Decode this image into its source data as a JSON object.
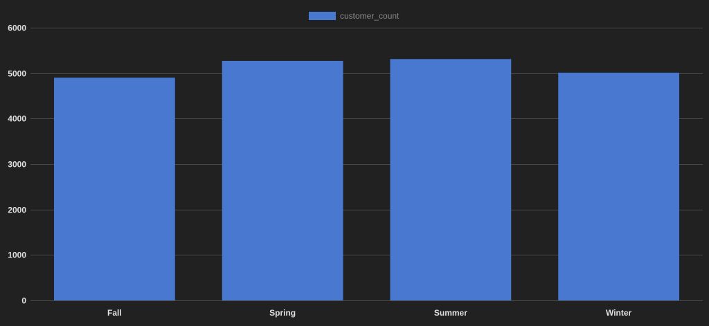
{
  "colors": {
    "background": "#212121",
    "bar": "#4878d0",
    "grid": "#4a4a4a",
    "tick_text": "#e0e0e0",
    "legend_text": "#8a8a8a"
  },
  "chart_data": {
    "type": "bar",
    "categories": [
      "Fall",
      "Spring",
      "Summer",
      "Winter"
    ],
    "series": [
      {
        "name": "customer_count",
        "values": [
          4900,
          5270,
          5310,
          5010
        ]
      }
    ],
    "title": "",
    "xlabel": "",
    "ylabel": "",
    "ylim": [
      0,
      6000
    ],
    "yticks": [
      0,
      1000,
      2000,
      3000,
      4000,
      5000,
      6000
    ],
    "grid": true,
    "legend_position": "top-center"
  }
}
